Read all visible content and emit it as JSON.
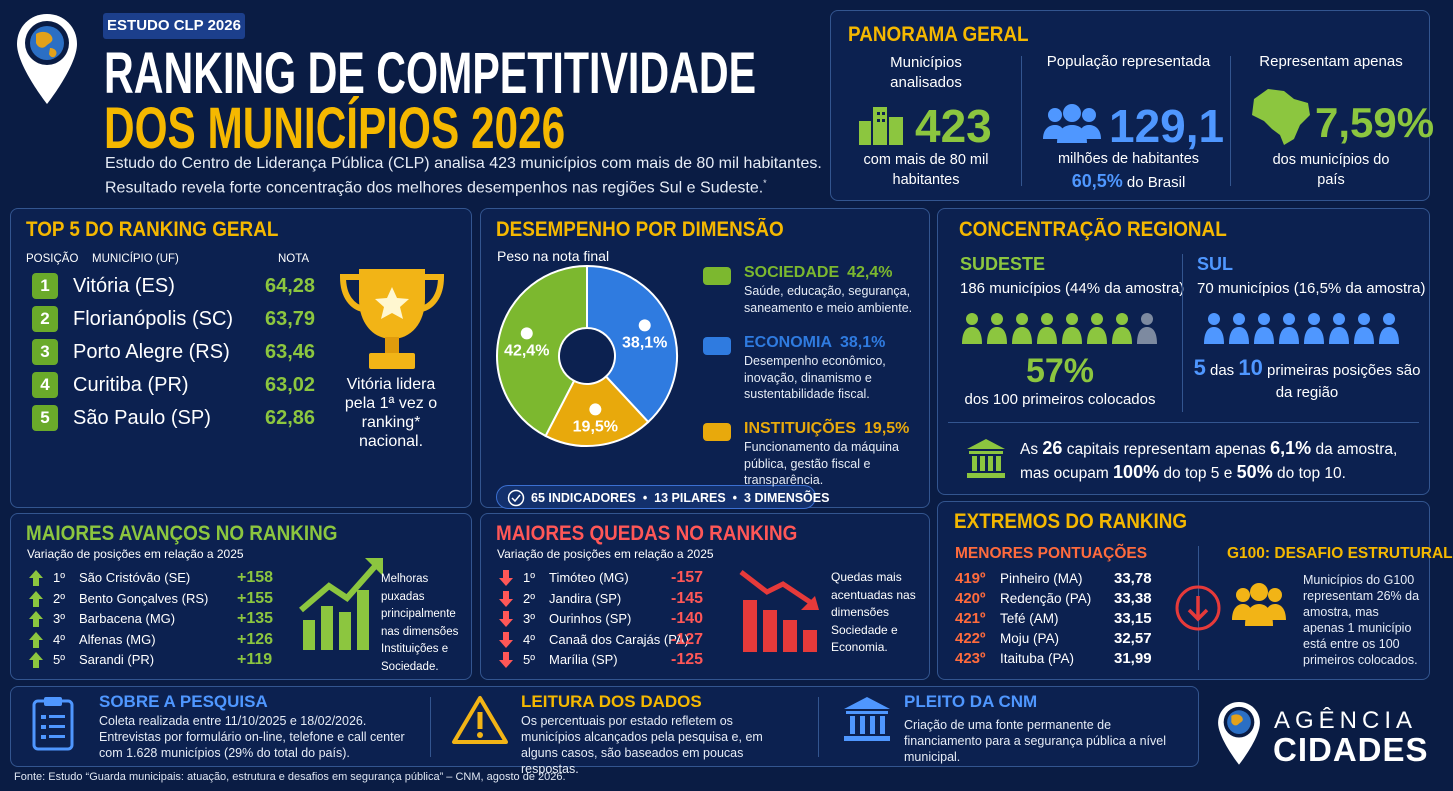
{
  "header": {
    "tag": "ESTUDO CLP 2026",
    "title_line1": "RANKING DE COMPETITIVIDADE",
    "title_line2": "DOS MUNICÍPIOS 2026",
    "subtitle_line1": "Estudo do Centro de Liderança Pública (CLP) analisa 423 municípios com mais de 80 mil habitantes.",
    "subtitle_line2": "Resultado revela forte concentração dos melhores desempenhos nas regiões Sul e Sudeste.",
    "footnote_mark": "*"
  },
  "panorama": {
    "title": "PANORAMA GERAL",
    "stats": [
      {
        "label": "Municípios analisados",
        "value": "423",
        "desc": "com mais de 80 mil habitantes"
      },
      {
        "label": "População representada",
        "value": "129,1",
        "desc": "milhões de habitantes",
        "extra_value": "60,5%",
        "extra_text": "do Brasil"
      },
      {
        "label": "Representam apenas",
        "value": "7,59%",
        "desc": "dos municípios do país"
      }
    ]
  },
  "top5": {
    "title": "TOP 5 DO RANKING GERAL",
    "columns": [
      "POSIÇÃO",
      "MUNICÍPIO (UF)",
      "NOTA"
    ],
    "rows": [
      [
        "1",
        "Vitória (ES)",
        "64,28"
      ],
      [
        "2",
        "Florianópolis (SC)",
        "63,79"
      ],
      [
        "3",
        "Porto Alegre (RS)",
        "63,46"
      ],
      [
        "4",
        "Curitiba (PR)",
        "63,02"
      ],
      [
        "5",
        "São Paulo (SP)",
        "62,86"
      ]
    ],
    "note": "Vitória lidera pela 1ª vez o ranking* nacional."
  },
  "dimensions": {
    "title": "DESEMPENHO POR DIMENSÃO",
    "subtitle": "Peso na nota final",
    "items": [
      {
        "name": "SOCIEDADE",
        "value": 42.4,
        "value_label": "42,4%",
        "color": "#7cb82f",
        "desc": "Saúde, educação, segurança, saneamento e meio ambiente."
      },
      {
        "name": "ECONOMIA",
        "value": 38.1,
        "value_label": "38,1%",
        "color": "#2f7be0",
        "desc": "Desempenho econômico, inovação, dinamismo e sustentabilidade fiscal."
      },
      {
        "name": "INSTITUIÇÕES",
        "value": 19.5,
        "value_label": "19,5%",
        "color": "#e8a90c",
        "desc": "Funcionamento da máquina pública, gestão fiscal e transparência."
      }
    ],
    "footer": [
      "65 INDICADORES",
      "13 PILARES",
      "3 DIMENSÕES"
    ]
  },
  "regional": {
    "title": "CONCENTRAÇÃO REGIONAL",
    "sudeste": {
      "name": "SUDESTE",
      "count": "186 municípios (44% da amostra)",
      "value": "57%",
      "desc": "dos 100 primeiros colocados"
    },
    "sul": {
      "name": "SUL",
      "count": "70 municípios (16,5% da amostra)",
      "parts": [
        "5",
        "das",
        "10",
        "primeiras posições são da região"
      ]
    },
    "capitals": [
      "As",
      "26",
      "capitais representam apenas",
      "6,1%",
      "da amostra, mas ocupam",
      "100%",
      "do top 5 e",
      "50%",
      "do top 10."
    ]
  },
  "advances": {
    "title": "MAIORES AVANÇOS NO RANKING",
    "subtitle": "Variação de posições em relação a 2025",
    "rows": [
      [
        "1º",
        "São Cristóvão (SE)",
        "+158"
      ],
      [
        "2º",
        "Bento Gonçalves (RS)",
        "+155"
      ],
      [
        "3º",
        "Barbacena (MG)",
        "+135"
      ],
      [
        "4º",
        "Alfenas (MG)",
        "+126"
      ],
      [
        "5º",
        "Sarandi (PR)",
        "+119"
      ]
    ],
    "note": "Melhoras puxadas principalmente nas dimensões Instituições e Sociedade."
  },
  "drops": {
    "title": "MAIORES QUEDAS NO RANKING",
    "subtitle": "Variação de posições em relação a 2025",
    "rows": [
      [
        "1º",
        "Timóteo (MG)",
        "-157"
      ],
      [
        "2º",
        "Jandira (SP)",
        "-145"
      ],
      [
        "3º",
        "Ourinhos (SP)",
        "-140"
      ],
      [
        "4º",
        "Canaã dos Carajás (PA)",
        "-127"
      ],
      [
        "5º",
        "Marília (SP)",
        "-125"
      ]
    ],
    "note": "Quedas mais acentuadas nas dimensões Sociedade e Economia."
  },
  "extremes": {
    "title": "EXTREMOS DO RANKING",
    "lowest_title": "MENORES PONTUAÇÕES",
    "rows": [
      [
        "419º",
        "Pinheiro (MA)",
        "33,78"
      ],
      [
        "420º",
        "Redenção (PA)",
        "33,38"
      ],
      [
        "421º",
        "Tefé (AM)",
        "33,15"
      ],
      [
        "422º",
        "Moju (PA)",
        "32,57"
      ],
      [
        "423º",
        "Itaituba (PA)",
        "31,99"
      ]
    ],
    "g100_title": "G100: DESAFIO ESTRUTURAL",
    "g100_text": "Municípios do G100 representam 26% da amostra, mas apenas 1 município está entre os 100 primeiros colocados."
  },
  "footer_boxes": [
    {
      "title": "SOBRE A PESQUISA",
      "text": "Coleta realizada entre 11/10/2025 e 18/02/2026. Entrevistas por formulário on-line, telefone e call center com 1.628 municípios (29% do total do país)."
    },
    {
      "title": "LEITURA DOS DADOS",
      "text": "Os percentuais por estado refletem os municípios alcançados pela pesquisa e, em alguns casos, são baseados em poucas respostas."
    },
    {
      "title": "PLEITO DA CNM",
      "text": "Criação de uma fonte permanente de financiamento para a segurança pública a nível municipal."
    }
  ],
  "brand": {
    "line1": "AGÊNCIA",
    "line2": "CIDADES"
  },
  "source": "Fonte: Estudo “Guarda municipais: atuação, estrutura e desafios em segurança pública” – CNM, agosto de 2026."
}
